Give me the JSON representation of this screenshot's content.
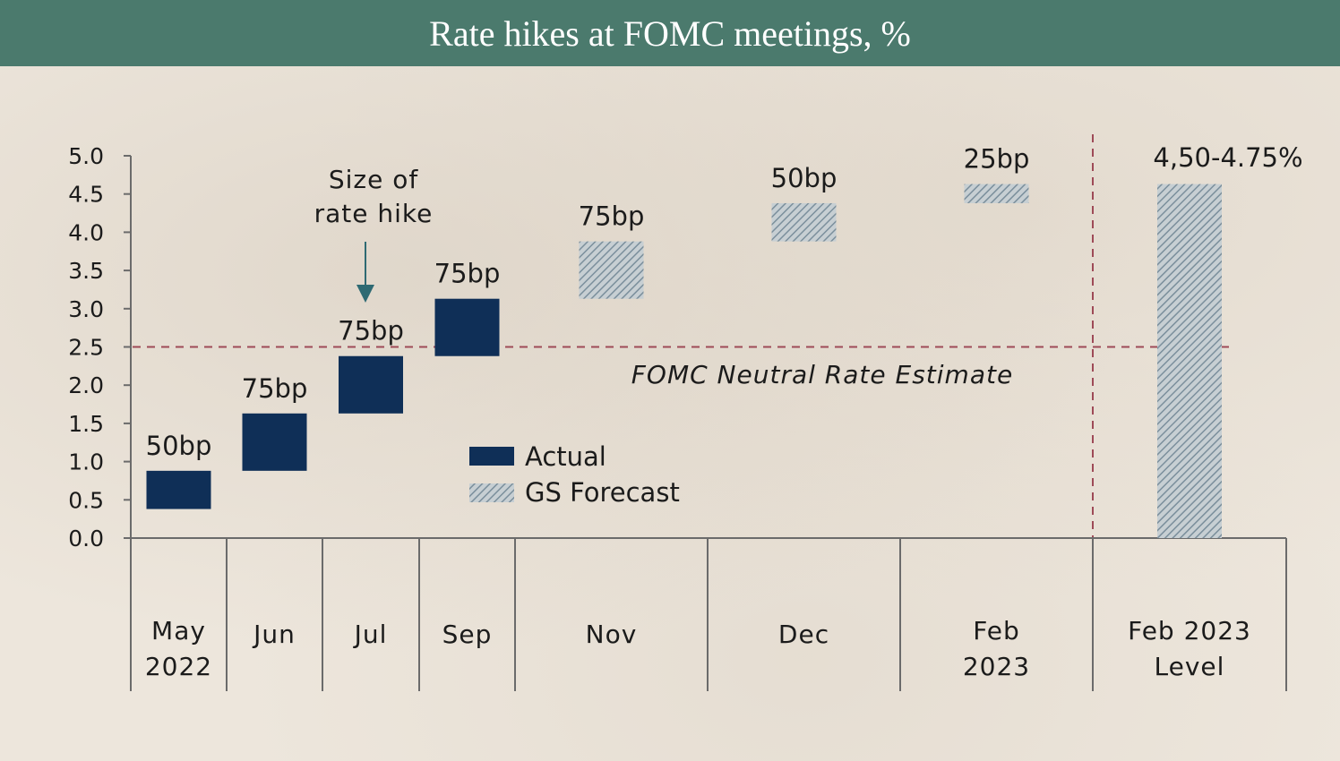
{
  "header": {
    "title": "Rate hikes at FOMC meetings, %"
  },
  "chart_data": {
    "type": "bar",
    "title": "Rate hikes at FOMC meetings, %",
    "ylim": [
      0,
      5
    ],
    "y_ticks": [
      "0.0",
      "0.5",
      "1.0",
      "1.5",
      "2.0",
      "2.5",
      "3.0",
      "3.5",
      "4.0",
      "4.5",
      "5.0"
    ],
    "categories": [
      [
        "May",
        "2022"
      ],
      [
        "Jun"
      ],
      [
        "Jul"
      ],
      [
        "Sep"
      ],
      [
        "Nov"
      ],
      [
        "Dec"
      ],
      [
        "Feb",
        "2023"
      ],
      [
        "Feb 2023",
        "Level"
      ]
    ],
    "bars": [
      {
        "category": "May 2022",
        "series": "Actual",
        "low": 0.38,
        "high": 0.88,
        "label": "50bp"
      },
      {
        "category": "Jun",
        "series": "Actual",
        "low": 0.88,
        "high": 1.63,
        "label": "75bp"
      },
      {
        "category": "Jul",
        "series": "Actual",
        "low": 1.63,
        "high": 2.38,
        "label": "75bp"
      },
      {
        "category": "Sep",
        "series": "Actual",
        "low": 2.38,
        "high": 3.13,
        "label": "75bp"
      },
      {
        "category": "Nov",
        "series": "GS Forecast",
        "low": 3.13,
        "high": 3.88,
        "label": "75bp"
      },
      {
        "category": "Dec",
        "series": "GS Forecast",
        "low": 3.88,
        "high": 4.38,
        "label": "50bp"
      },
      {
        "category": "Feb 2023",
        "series": "GS Forecast",
        "low": 4.38,
        "high": 4.63,
        "label": "25bp"
      },
      {
        "category": "Feb 2023 Level",
        "series": "GS Forecast",
        "low": 0,
        "high": 4.63,
        "label": "4,50-4.75%"
      }
    ],
    "reference_line": {
      "value": 2.5,
      "label": "FOMC Neutral Rate Estimate"
    },
    "annotation": {
      "lines": [
        "Size of",
        "rate hike"
      ],
      "target": "Jul"
    },
    "legend": {
      "items": [
        "Actual",
        "GS Forecast"
      ],
      "placement": "center"
    },
    "colors": {
      "actual": "#0f2f57",
      "forecast": "#8a9eac",
      "reference": "#9e4a57",
      "axis": "#6b6b6b"
    }
  }
}
